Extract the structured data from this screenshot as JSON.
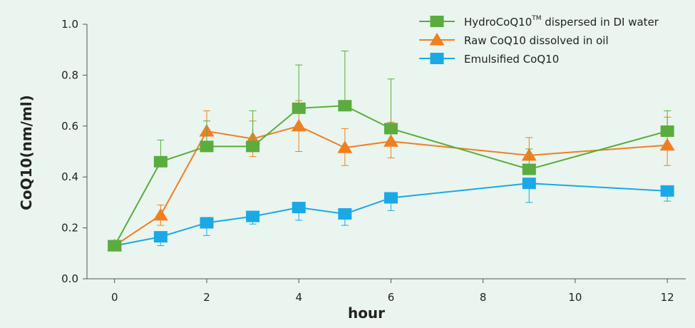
{
  "chart_data": {
    "type": "line",
    "xlabel": "hour",
    "ylabel": "CoQ10(nm/ml)",
    "xlim": [
      -0.6,
      12.4
    ],
    "ylim": [
      0.0,
      1.0
    ],
    "xticks": [
      0,
      2,
      4,
      6,
      8,
      10,
      12
    ],
    "yticks": [
      0.0,
      0.2,
      0.4,
      0.6,
      0.8,
      1.0
    ],
    "ytick_labels": [
      "0.0",
      "0.2",
      "0.4",
      "0.6",
      "0.8",
      "1.0"
    ],
    "grid": false,
    "legend_position": "top-right",
    "series": [
      {
        "name": "HydroCoQ10",
        "name_superscript": "TM",
        "name_suffix": " dispersed in DI water",
        "color": "#5aac3e",
        "marker": "square",
        "x": [
          0,
          1,
          2,
          3,
          4,
          5,
          6,
          9,
          12
        ],
        "y": [
          0.13,
          0.46,
          0.52,
          0.52,
          0.67,
          0.68,
          0.59,
          0.43,
          0.58
        ],
        "err_upper": [
          0.0,
          0.085,
          0.1,
          0.14,
          0.17,
          0.215,
          0.195,
          0.08,
          0.08
        ],
        "err_lower": [
          0.0,
          0.0,
          0.0,
          0.0,
          0.0,
          0.0,
          0.0,
          0.0,
          0.0
        ]
      },
      {
        "name": "Raw CoQ10 dissolved in oil",
        "color": "#f07f22",
        "marker": "triangle",
        "x": [
          0,
          1,
          2,
          3,
          4,
          5,
          6,
          9,
          12
        ],
        "y": [
          0.13,
          0.25,
          0.58,
          0.55,
          0.6,
          0.515,
          0.54,
          0.485,
          0.525
        ],
        "err_upper": [
          0.0,
          0.04,
          0.08,
          0.07,
          0.1,
          0.075,
          0.075,
          0.07,
          0.11
        ],
        "err_lower": [
          0.0,
          0.04,
          0.08,
          0.07,
          0.1,
          0.07,
          0.065,
          0.0,
          0.08
        ]
      },
      {
        "name": "Emulsified CoQ10",
        "color": "#1aa9e6",
        "marker": "square",
        "x": [
          0,
          1,
          2,
          3,
          4,
          5,
          6,
          9,
          12
        ],
        "y": [
          0.13,
          0.165,
          0.22,
          0.245,
          0.28,
          0.255,
          0.318,
          0.375,
          0.345
        ],
        "err_upper": [
          0.0,
          0.0,
          0.0,
          0.0,
          0.0,
          0.0,
          0.0,
          0.0,
          0.0
        ],
        "err_lower": [
          0.0,
          0.035,
          0.05,
          0.03,
          0.05,
          0.045,
          0.05,
          0.075,
          0.04
        ]
      }
    ]
  }
}
